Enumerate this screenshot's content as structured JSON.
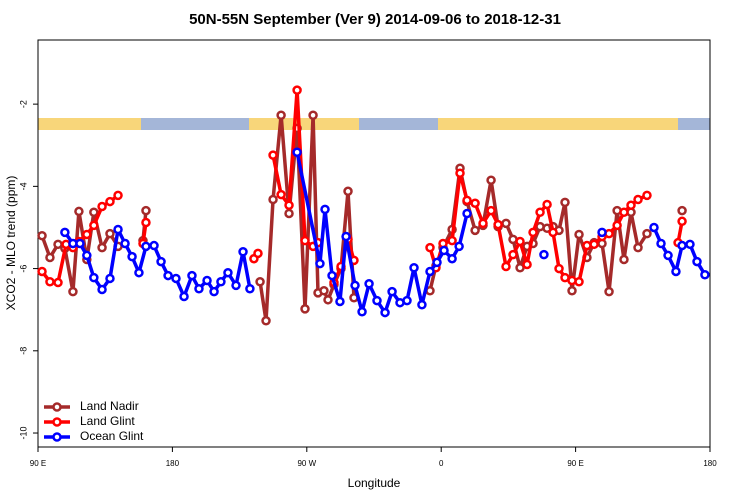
{
  "chart_data": {
    "type": "line",
    "title": "50N-55N September (Ver 9)   2014-09-06 to 2018-12-31",
    "x_label": "Longitude",
    "y_label": "XCO2 - MLO trend (ppm)",
    "xlim": [
      90,
      540
    ],
    "ylim": [
      -10.34,
      -0.44
    ],
    "xticks": [
      {
        "value": 90,
        "label": "90 E"
      },
      180,
      {
        "value": 270,
        "label": "90 W"
      },
      {
        "value": 360,
        "label": "0"
      },
      {
        "value": 450,
        "label": "90 E"
      },
      {
        "value": 540,
        "label": "180"
      }
    ],
    "yticks": [
      -2,
      -4,
      -6,
      -8,
      -10
    ],
    "legend": "lower left",
    "series": [
      {
        "name": "Land Nadir",
        "color": "#a52a2a",
        "x": [
          92.7,
          98,
          103.4,
          108,
          113.4,
          117.4,
          122.7,
          127.4,
          132.9,
          138.2,
          143.6,
          null,
          160.3,
          162.3,
          null,
          238.7,
          242.7,
          247.4,
          252.8,
          258.1,
          263.5,
          268.8,
          274.2,
          277.5,
          281.5,
          284.2,
          288.2,
          292.9,
          297.6,
          301.6,
          null,
          352.5,
          356.5,
          361.2,
          367.3,
          372.6,
          377.3,
          382.7,
          388,
          393.4,
          398.1,
          403.4,
          408.1,
          412.8,
          417.5,
          421.5,
          426.2,
          430.9,
          434.9,
          438.9,
          442.9,
          447.6,
          452.3,
          457.6,
          462.4,
          467.7,
          472.4,
          477.8,
          482.4,
          487.1,
          491.8,
          497.8,
          null,
          521.3
        ],
        "values": [
          -5.2,
          -5.73,
          -5.41,
          -5.51,
          -6.56,
          -4.61,
          -5.78,
          -4.63,
          -5.49,
          -5.15,
          -5.46,
          null,
          -5.32,
          -4.59,
          null,
          -6.32,
          -7.27,
          -4.32,
          -2.27,
          -4.66,
          -2.59,
          -6.98,
          -2.27,
          -6.59,
          -6.54,
          -6.76,
          -6.39,
          -6.0,
          -4.12,
          -6.71,
          null,
          -6.54,
          -5.93,
          -5.49,
          -5.05,
          -3.56,
          -4.37,
          -5.07,
          -4.95,
          -3.85,
          -4.98,
          -4.9,
          -5.29,
          -5.98,
          -5.46,
          -5.39,
          -4.98,
          -5.02,
          -4.98,
          -5.07,
          -4.39,
          -6.54,
          -5.17,
          -5.73,
          -5.37,
          -5.39,
          -6.56,
          -4.59,
          -5.78,
          -4.63,
          -5.49,
          -5.15,
          null,
          -4.59
        ]
      },
      {
        "name": "Land Glint",
        "color": "#ff0000",
        "x": [
          92.7,
          98,
          103.4,
          108.8,
          113.4,
          117.4,
          122.7,
          127.4,
          132.9,
          138.2,
          143.6,
          null,
          160.3,
          162.3,
          null,
          234.6,
          237.3,
          null,
          247.4,
          252.8,
          258.1,
          263.5,
          268.8,
          274.2,
          277.5,
          null,
          288.2,
          292.9,
          297.6,
          301.6,
          null,
          352.5,
          356.5,
          361.2,
          367.3,
          372.6,
          377.3,
          382.7,
          388,
          393.4,
          398.1,
          403.4,
          408.1,
          412.8,
          417.5,
          421.5,
          426.2,
          430.9,
          434.9,
          438.9,
          442.9,
          447.6,
          452.3,
          457.6,
          462.4,
          467.7,
          472.4,
          477.8,
          482.4,
          487.1,
          491.8,
          497.8,
          null,
          518.6,
          521.3
        ],
        "values": [
          -6.07,
          -6.32,
          -6.34,
          -5.41,
          -5.49,
          -5.34,
          -5.17,
          -4.95,
          -4.49,
          -4.37,
          -4.22,
          null,
          -5.39,
          -4.88,
          null,
          -5.76,
          -5.63,
          null,
          -3.24,
          -4.2,
          -4.46,
          -1.66,
          -5.32,
          -5.46,
          -5.37,
          null,
          -6.34,
          -5.95,
          -5.29,
          -5.8,
          null,
          -5.49,
          -5.98,
          -5.39,
          -5.32,
          -3.68,
          -4.34,
          -4.41,
          -4.9,
          -4.59,
          -4.93,
          -5.95,
          -5.66,
          -5.34,
          -5.9,
          -5.12,
          -4.63,
          -4.44,
          -5.12,
          -6.0,
          -6.22,
          -6.29,
          -6.32,
          -5.44,
          -5.41,
          -5.22,
          -5.15,
          -4.95,
          -4.63,
          -4.46,
          -4.32,
          -4.22,
          null,
          -5.37,
          -4.85
        ]
      },
      {
        "name": "Ocean Glint",
        "color": "#0000ff",
        "x": [
          108,
          113.4,
          118.1,
          122.7,
          127.4,
          132.9,
          138.2,
          143.6,
          148.3,
          153,
          157.6,
          162.3,
          167.7,
          172.4,
          177.1,
          182.4,
          187.8,
          193.1,
          197.8,
          203.2,
          207.9,
          212.5,
          217.2,
          222.6,
          227.3,
          231.9,
          null,
          263.5,
          278.8,
          282.2,
          286.9,
          292.2,
          296.3,
          302.3,
          307,
          311.7,
          317,
          322.4,
          327.1,
          332.4,
          337.1,
          341.8,
          347.1,
          352.5,
          357.2,
          361.9,
          367.3,
          372,
          377.3,
          null,
          428.8,
          null,
          467.7,
          null,
          502.5,
          507.2,
          511.9,
          517.2,
          521.3,
          526.6,
          531.3,
          536.6
        ],
        "values": [
          -5.12,
          -5.39,
          -5.39,
          -5.68,
          -6.22,
          -6.51,
          -6.24,
          -5.05,
          -5.39,
          -5.71,
          -6.1,
          -5.46,
          -5.44,
          -5.83,
          -6.17,
          -6.24,
          -6.68,
          -6.17,
          -6.49,
          -6.29,
          -6.56,
          -6.32,
          -6.1,
          -6.41,
          -5.59,
          -6.49,
          null,
          -3.17,
          -5.88,
          -4.56,
          -6.17,
          -6.8,
          -5.22,
          -6.41,
          -7.05,
          -6.37,
          -6.78,
          -7.07,
          -6.56,
          -6.83,
          -6.78,
          -5.98,
          -6.88,
          -6.07,
          -5.85,
          -5.56,
          -5.76,
          -5.46,
          -4.66,
          null,
          -5.66,
          null,
          -5.12,
          null,
          -5,
          -5.39,
          -5.68,
          -6.07,
          -5.44,
          -5.41,
          -5.83,
          -6.15
        ]
      }
    ]
  }
}
